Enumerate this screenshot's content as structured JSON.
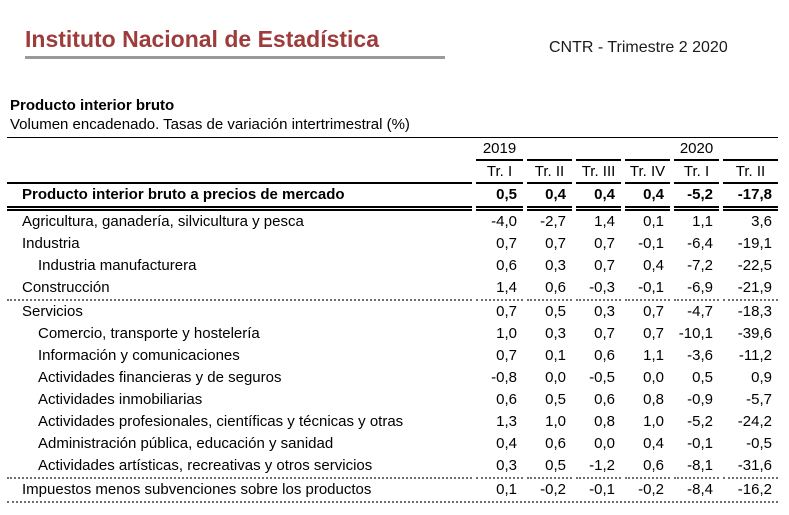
{
  "header": {
    "logo_text": "Instituto Nacional de Estadística",
    "release_label": "CNTR - Trimestre 2 2020"
  },
  "section": {
    "title": "Producto interior bruto",
    "subtitle": "Volumen encadenado. Tasas de variación intertrimestral (%)"
  },
  "colors": {
    "brand_red": "#9e3b3b",
    "rule_gray": "#9a9a9a",
    "dashed_separator_gray": "#6f6f6f",
    "text_black": "#000000"
  },
  "table": {
    "year_groups": [
      {
        "label": "2019",
        "column_index": 0
      },
      {
        "label": "2020",
        "column_index": 4
      }
    ],
    "quarters": [
      "Tr. I",
      "Tr. II",
      "Tr. III",
      "Tr. IV",
      "Tr. I",
      "Tr. II"
    ],
    "rows": [
      {
        "label": "Producto interior bruto a precios de mercado",
        "indent": false,
        "bold": true,
        "sep": "double",
        "values": [
          "0,5",
          "0,4",
          "0,4",
          "0,4",
          "-5,2",
          "-17,8"
        ]
      },
      {
        "label": "Agricultura, ganadería, silvicultura y pesca",
        "indent": false,
        "bold": false,
        "sep": "none",
        "values": [
          "-4,0",
          "-2,7",
          "1,4",
          "0,1",
          "1,1",
          "3,6"
        ]
      },
      {
        "label": "Industria",
        "indent": false,
        "bold": false,
        "sep": "none",
        "values": [
          "0,7",
          "0,7",
          "0,7",
          "-0,1",
          "-6,4",
          "-19,1"
        ]
      },
      {
        "label": "Industria manufacturera",
        "indent": true,
        "bold": false,
        "sep": "none",
        "values": [
          "0,6",
          "0,3",
          "0,7",
          "0,4",
          "-7,2",
          "-22,5"
        ]
      },
      {
        "label": "Construcción",
        "indent": false,
        "bold": false,
        "sep": "dashed",
        "values": [
          "1,4",
          "0,6",
          "-0,3",
          "-0,1",
          "-6,9",
          "-21,9"
        ]
      },
      {
        "label": "Servicios",
        "indent": false,
        "bold": false,
        "sep": "none",
        "values": [
          "0,7",
          "0,5",
          "0,3",
          "0,7",
          "-4,7",
          "-18,3"
        ]
      },
      {
        "label": "Comercio, transporte y hostelería",
        "indent": true,
        "bold": false,
        "sep": "none",
        "values": [
          "1,0",
          "0,3",
          "0,7",
          "0,7",
          "-10,1",
          "-39,6"
        ]
      },
      {
        "label": "Información y comunicaciones",
        "indent": true,
        "bold": false,
        "sep": "none",
        "values": [
          "0,7",
          "0,1",
          "0,6",
          "1,1",
          "-3,6",
          "-11,2"
        ]
      },
      {
        "label": "Actividades financieras y de seguros",
        "indent": true,
        "bold": false,
        "sep": "none",
        "values": [
          "-0,8",
          "0,0",
          "-0,5",
          "0,0",
          "0,5",
          "0,9"
        ]
      },
      {
        "label": "Actividades inmobiliarias",
        "indent": true,
        "bold": false,
        "sep": "none",
        "values": [
          "0,6",
          "0,5",
          "0,6",
          "0,8",
          "-0,9",
          "-5,7"
        ]
      },
      {
        "label": "Actividades profesionales, científicas y técnicas y otras",
        "indent": true,
        "bold": false,
        "sep": "none",
        "values": [
          "1,3",
          "1,0",
          "0,8",
          "1,0",
          "-5,2",
          "-24,2"
        ]
      },
      {
        "label": "Administración pública, educación y sanidad",
        "indent": true,
        "bold": false,
        "sep": "none",
        "values": [
          "0,4",
          "0,6",
          "0,0",
          "0,4",
          "-0,1",
          "-0,5"
        ]
      },
      {
        "label": "Actividades artísticas, recreativas y otros servicios",
        "indent": true,
        "bold": false,
        "sep": "dashed",
        "values": [
          "0,3",
          "0,5",
          "-1,2",
          "0,6",
          "-8,1",
          "-31,6"
        ]
      },
      {
        "label": "Impuestos menos subvenciones sobre los productos",
        "indent": false,
        "bold": false,
        "sep": "none",
        "values": [
          "0,1",
          "-0,2",
          "-0,1",
          "-0,2",
          "-8,4",
          "-16,2"
        ]
      }
    ]
  }
}
